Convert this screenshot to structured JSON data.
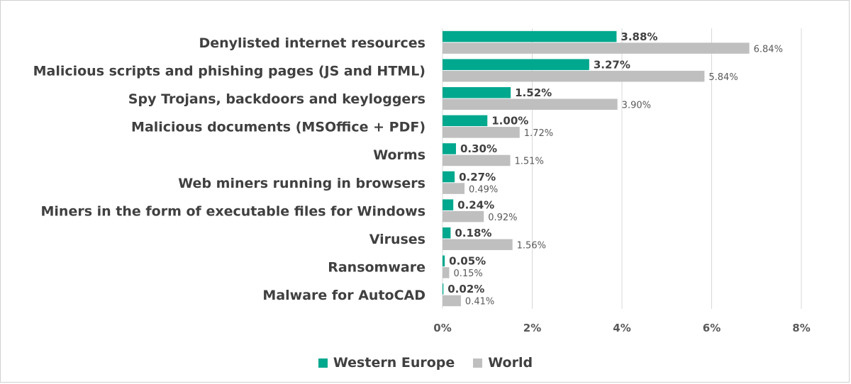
{
  "chart_data": {
    "type": "bar",
    "orientation": "horizontal",
    "title": "",
    "xlabel": "",
    "ylabel": "",
    "xlim": [
      0,
      8
    ],
    "x_ticks": [
      "0%",
      "2%",
      "4%",
      "6%",
      "8%"
    ],
    "grid": true,
    "legend_position": "bottom",
    "categories": [
      "Denylisted internet resources",
      "Malicious scripts and phishing pages (JS and HTML)",
      "Spy Trojans, backdoors and keyloggers",
      "Malicious documents (MSOffice + PDF)",
      "Worms",
      "Web miners running in browsers",
      "Miners in the form of executable files for Windows",
      "Viruses",
      "Ransomware",
      "Malware for AutoCAD"
    ],
    "series": [
      {
        "name": "Western Europe",
        "color": "#00a88e",
        "values": [
          3.88,
          3.27,
          1.52,
          1.0,
          0.3,
          0.27,
          0.24,
          0.18,
          0.05,
          0.02
        ],
        "labels": [
          "3.88%",
          "3.27%",
          "1.52%",
          "1.00%",
          "0.30%",
          "0.27%",
          "0.24%",
          "0.18%",
          "0.05%",
          "0.02%"
        ]
      },
      {
        "name": "World",
        "color": "#bfbfbf",
        "values": [
          6.84,
          5.84,
          3.9,
          1.72,
          1.51,
          0.49,
          0.92,
          1.56,
          0.15,
          0.41
        ],
        "labels": [
          "6.84%",
          "5.84%",
          "3.90%",
          "1.72%",
          "1.51%",
          "0.49%",
          "0.92%",
          "1.56%",
          "0.15%",
          "0.41%"
        ]
      }
    ]
  }
}
